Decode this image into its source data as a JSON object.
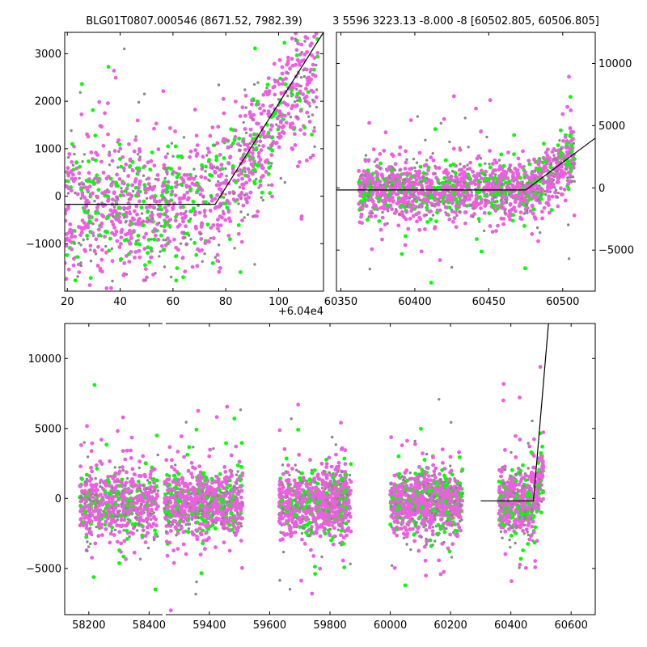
{
  "chart_data": [
    {
      "type": "scatter",
      "title": "BLG01T0807.000546 (8671.52, 7982.39)",
      "xlabel": "",
      "ylabel": "",
      "xlim": [
        60419,
        60517
      ],
      "ylim": [
        -2000,
        3450
      ],
      "x_ticks": [
        20,
        40,
        60,
        80,
        100
      ],
      "x_tick_offset": 60400,
      "x_offset_label": "+6.04e4",
      "y_ticks": [
        -1000,
        0,
        1000,
        2000,
        3000
      ],
      "y_tick_labels": [
        "−1000",
        "0",
        "1000",
        "2000",
        "3000"
      ],
      "y_tick_side": "left",
      "grid": false,
      "colors": {
        "primary": "#ee5ee0",
        "secondary": "#00ff00",
        "tertiary": "#888888",
        "model": "#000000"
      },
      "model_line": {
        "x": [
          60419,
          60476,
          60517
        ],
        "y": [
          -170,
          -170,
          3450
        ]
      },
      "cloud": {
        "points": 1400,
        "x_range": [
          60419,
          60515
        ],
        "baseline": -200,
        "baseline_end": 60476,
        "slope_per_day": 80,
        "sigma": 700
      }
    },
    {
      "type": "scatter",
      "title": "3 5596 3223.13 -8.000 -8 [60502.805, 60506.805]",
      "xlabel": "",
      "ylabel": "",
      "xlim": [
        60347,
        60522
      ],
      "ylim": [
        -8300,
        12500
      ],
      "x_ticks": [
        60350,
        60400,
        60450,
        60500
      ],
      "y_ticks": [
        -5000,
        0,
        5000,
        10000
      ],
      "y_tick_labels": [
        "−5000",
        "0",
        "5000",
        "10000"
      ],
      "y_tick_side": "right",
      "grid": false,
      "colors": {
        "primary": "#ee5ee0",
        "secondary": "#00ff00",
        "tertiary": "#888888",
        "model": "#000000"
      },
      "model_line": {
        "x": [
          60347,
          60475,
          60522
        ],
        "y": [
          -170,
          -170,
          4000
        ]
      },
      "cloud": {
        "points": 1700,
        "x_range": [
          60362,
          60508
        ],
        "baseline": -200,
        "baseline_end": 60476,
        "slope_per_day": 80,
        "sigma": 1100
      }
    },
    {
      "type": "scatter",
      "title": "",
      "xlabel": "",
      "ylabel": "",
      "xlim": [
        58120,
        60680
      ],
      "ylim": [
        -8300,
        12500
      ],
      "x_ticks": [
        58200,
        58400,
        59400,
        59600,
        59800,
        60000,
        60200,
        60400,
        60600
      ],
      "y_ticks": [
        -5000,
        0,
        5000,
        10000
      ],
      "y_tick_labels": [
        "−5000",
        "0",
        "5000",
        "10000"
      ],
      "y_tick_side": "left",
      "grid": false,
      "axis_break": {
        "after": 58450,
        "before": 59250
      },
      "colors": {
        "primary": "#ee5ee0",
        "secondary": "#00ff00",
        "tertiary": "#888888",
        "model": "#000000"
      },
      "model_line": {
        "x": [
          60300,
          60475,
          60525
        ],
        "y": [
          -170,
          -170,
          12500
        ]
      },
      "seasons": [
        {
          "x_range": [
            58170,
            58430
          ],
          "points": 700
        },
        {
          "x_range": [
            59250,
            59510
          ],
          "points": 900
        },
        {
          "x_range": [
            59630,
            59870
          ],
          "points": 900
        },
        {
          "x_range": [
            60000,
            60240
          ],
          "points": 900
        },
        {
          "x_range": [
            60360,
            60508
          ],
          "points": 650
        }
      ]
    }
  ]
}
